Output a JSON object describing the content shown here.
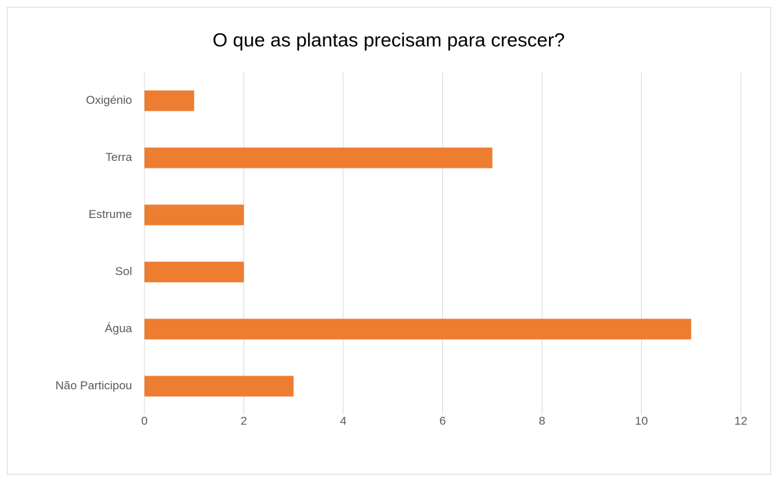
{
  "chart_data": {
    "type": "bar",
    "orientation": "horizontal",
    "title": "O que as plantas precisam para crescer?",
    "categories": [
      "Oxigénio",
      "Terra",
      "Estrume",
      "Sol",
      "Água",
      "Não Participou"
    ],
    "values": [
      1,
      7,
      2,
      2,
      11,
      3
    ],
    "color": "#ed7d31",
    "xlim": [
      0,
      12
    ],
    "xticks": [
      0,
      2,
      4,
      6,
      8,
      10,
      12
    ],
    "grid": true
  }
}
